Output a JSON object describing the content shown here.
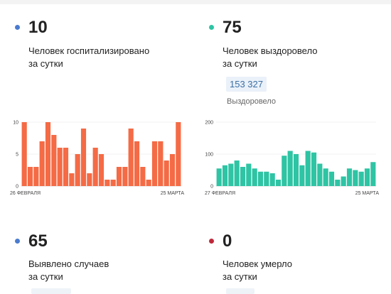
{
  "stats": {
    "hospitalized": {
      "value": "10",
      "line1": "Человек госпитализировано",
      "line2": "за сутки",
      "color": "#4a7bd0"
    },
    "recovered": {
      "value": "75",
      "line1": "Человек выздоровело",
      "line2": "за сутки",
      "color": "#2ec4a4",
      "total": "153 327",
      "total_caption": "Выздоровело"
    },
    "cases": {
      "value": "65",
      "line1": "Выявлено случаев",
      "line2": "за сутки",
      "color": "#4a7bd0"
    },
    "deaths": {
      "value": "0",
      "line1": "Человек умерло",
      "line2": "за сутки",
      "color": "#c0283a"
    }
  },
  "chart_data": [
    {
      "type": "bar",
      "color": "#f46b45",
      "x_start_label": "26 ФЕВРАЛЯ",
      "x_end_label": "25 МАРТА",
      "yticks": [
        "10",
        "5",
        "0"
      ],
      "ylim": [
        0,
        10
      ],
      "values": [
        10,
        3,
        3,
        7,
        10,
        8,
        6,
        6,
        2,
        5,
        9,
        2,
        6,
        5,
        1,
        1,
        3,
        3,
        9,
        7,
        3,
        1,
        7,
        7,
        4,
        5,
        10
      ]
    },
    {
      "type": "bar",
      "color": "#2ec4a4",
      "x_start_label": "27 ФЕВРАЛЯ",
      "x_end_label": "25 МАРТА",
      "yticks": [
        "200",
        "100",
        "0"
      ],
      "ylim": [
        0,
        200
      ],
      "values": [
        55,
        65,
        70,
        80,
        60,
        70,
        55,
        45,
        45,
        40,
        20,
        95,
        110,
        100,
        65,
        110,
        105,
        70,
        55,
        45,
        20,
        30,
        55,
        50,
        45,
        55,
        75
      ]
    }
  ]
}
